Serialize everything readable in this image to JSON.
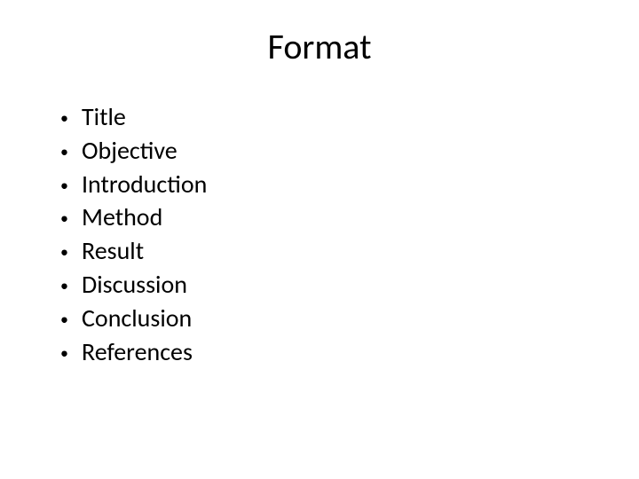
{
  "slide": {
    "title": "Format",
    "bullets": [
      "Title",
      "Objective",
      "Introduction",
      "Method",
      "Result",
      "Discussion",
      "Conclusion",
      "References"
    ],
    "title_fontsize": 40,
    "bullet_fontsize": 28,
    "background_color": "#ffffff",
    "text_color": "#000000",
    "bullet_char": "•"
  }
}
